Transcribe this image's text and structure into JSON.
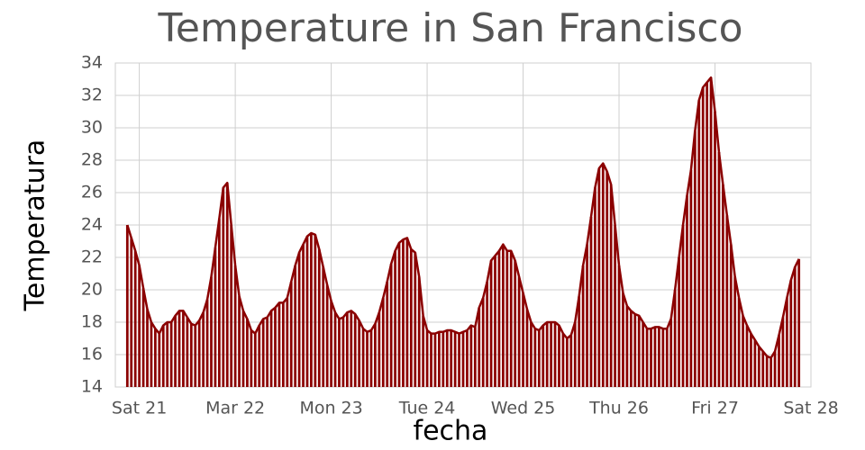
{
  "chart_data": {
    "type": "bar",
    "title": "Temperature in San Francisco",
    "x_label": "fecha",
    "y_label": "Temperatura",
    "color": "#8b0000",
    "line": true,
    "grid": true,
    "x": [
      "03-20 21:00",
      "03-20 22:00",
      "03-20 23:00",
      "03-21 00:00",
      "03-21 01:00",
      "03-21 02:00",
      "03-21 03:00",
      "03-21 04:00",
      "03-21 05:00",
      "03-21 06:00",
      "03-21 07:00",
      "03-21 08:00",
      "03-21 09:00",
      "03-21 10:00",
      "03-21 11:00",
      "03-21 12:00",
      "03-21 13:00",
      "03-21 14:00",
      "03-21 15:00",
      "03-21 16:00",
      "03-21 17:00",
      "03-21 18:00",
      "03-21 19:00",
      "03-21 20:00",
      "03-21 21:00",
      "03-21 22:00",
      "03-21 23:00",
      "03-22 00:00",
      "03-22 01:00",
      "03-22 02:00",
      "03-22 03:00",
      "03-22 04:00",
      "03-22 05:00",
      "03-22 06:00",
      "03-22 07:00",
      "03-22 08:00",
      "03-22 09:00",
      "03-22 10:00",
      "03-22 11:00",
      "03-22 12:00",
      "03-22 13:00",
      "03-22 14:00",
      "03-22 15:00",
      "03-22 16:00",
      "03-22 17:00",
      "03-22 18:00",
      "03-22 19:00",
      "03-22 20:00",
      "03-22 21:00",
      "03-22 22:00",
      "03-22 23:00",
      "03-23 00:00",
      "03-23 01:00",
      "03-23 02:00",
      "03-23 03:00",
      "03-23 04:00",
      "03-23 05:00",
      "03-23 06:00",
      "03-23 07:00",
      "03-23 08:00",
      "03-23 09:00",
      "03-23 10:00",
      "03-23 11:00",
      "03-23 12:00",
      "03-23 13:00",
      "03-23 14:00",
      "03-23 15:00",
      "03-23 16:00",
      "03-23 17:00",
      "03-23 18:00",
      "03-23 19:00",
      "03-23 20:00",
      "03-23 21:00",
      "03-23 22:00",
      "03-23 23:00",
      "03-24 00:00",
      "03-24 01:00",
      "03-24 02:00",
      "03-24 03:00",
      "03-24 04:00",
      "03-24 05:00",
      "03-24 06:00",
      "03-24 07:00",
      "03-24 08:00",
      "03-24 09:00",
      "03-24 10:00",
      "03-24 11:00",
      "03-24 12:00",
      "03-24 13:00",
      "03-24 14:00",
      "03-24 15:00",
      "03-24 16:00",
      "03-24 17:00",
      "03-24 18:00",
      "03-24 19:00",
      "03-24 20:00",
      "03-24 21:00",
      "03-24 22:00",
      "03-24 23:00",
      "03-25 00:00",
      "03-25 01:00",
      "03-25 02:00",
      "03-25 03:00",
      "03-25 04:00",
      "03-25 05:00",
      "03-25 06:00",
      "03-25 07:00",
      "03-25 08:00",
      "03-25 09:00",
      "03-25 10:00",
      "03-25 11:00",
      "03-25 12:00",
      "03-25 13:00",
      "03-25 14:00",
      "03-25 15:00",
      "03-25 16:00",
      "03-25 17:00",
      "03-25 18:00",
      "03-25 19:00",
      "03-25 20:00",
      "03-25 21:00",
      "03-25 22:00",
      "03-25 23:00",
      "03-26 00:00",
      "03-26 01:00",
      "03-26 02:00",
      "03-26 03:00",
      "03-26 04:00",
      "03-26 05:00",
      "03-26 06:00",
      "03-26 07:00",
      "03-26 08:00",
      "03-26 09:00",
      "03-26 10:00",
      "03-26 11:00",
      "03-26 12:00",
      "03-26 13:00",
      "03-26 14:00",
      "03-26 15:00",
      "03-26 16:00",
      "03-26 17:00",
      "03-26 18:00",
      "03-26 19:00",
      "03-26 20:00",
      "03-26 21:00",
      "03-26 22:00",
      "03-26 23:00",
      "03-27 00:00",
      "03-27 01:00",
      "03-27 02:00",
      "03-27 03:00",
      "03-27 04:00",
      "03-27 05:00",
      "03-27 06:00",
      "03-27 07:00",
      "03-27 08:00",
      "03-27 09:00",
      "03-27 10:00",
      "03-27 11:00",
      "03-27 12:00",
      "03-27 13:00",
      "03-27 14:00",
      "03-27 15:00",
      "03-27 16:00",
      "03-27 17:00",
      "03-27 18:00",
      "03-27 19:00",
      "03-27 20:00",
      "03-27 21:00"
    ],
    "values": [
      24.0,
      23.2,
      22.4,
      21.5,
      20.1,
      18.8,
      18.0,
      17.6,
      17.3,
      17.8,
      18.0,
      18.0,
      18.4,
      18.7,
      18.7,
      18.3,
      17.9,
      17.8,
      18.1,
      18.6,
      19.4,
      20.8,
      22.6,
      24.4,
      26.3,
      26.6,
      24.0,
      21.5,
      19.6,
      18.7,
      18.2,
      17.5,
      17.3,
      17.8,
      18.2,
      18.3,
      18.7,
      18.9,
      19.2,
      19.2,
      19.5,
      20.5,
      21.5,
      22.3,
      22.8,
      23.3,
      23.5,
      23.4,
      22.5,
      21.4,
      20.3,
      19.3,
      18.6,
      18.2,
      18.3,
      18.6,
      18.7,
      18.5,
      18.1,
      17.6,
      17.4,
      17.5,
      17.9,
      18.6,
      19.5,
      20.5,
      21.6,
      22.4,
      22.9,
      23.1,
      23.2,
      22.5,
      22.3,
      20.8,
      18.4,
      17.5,
      17.3,
      17.3,
      17.4,
      17.4,
      17.5,
      17.5,
      17.4,
      17.3,
      17.4,
      17.5,
      17.8,
      17.7,
      18.9,
      19.5,
      20.5,
      21.8,
      22.1,
      22.4,
      22.8,
      22.4,
      22.4,
      21.8,
      20.8,
      19.8,
      18.8,
      18.0,
      17.6,
      17.5,
      17.8,
      18.0,
      18.0,
      18.0,
      17.8,
      17.3,
      17.0,
      17.2,
      18.0,
      19.6,
      21.5,
      22.8,
      24.5,
      26.3,
      27.5,
      27.8,
      27.3,
      26.5,
      24.0,
      21.5,
      19.8,
      19.0,
      18.7,
      18.5,
      18.4,
      18.0,
      17.6,
      17.6,
      17.7,
      17.7,
      17.6,
      17.6,
      18.2,
      20.0,
      22.0,
      24.0,
      25.8,
      27.4,
      29.8,
      31.7,
      32.5,
      32.8,
      33.1,
      31.0,
      28.5,
      26.5,
      24.6,
      22.8,
      20.8,
      19.5,
      18.4,
      17.8,
      17.3,
      16.9,
      16.5,
      16.2,
      15.9,
      15.8,
      16.2,
      17.2,
      18.3,
      19.5,
      20.6,
      21.4,
      21.9
    ],
    "xlim": [
      "03-20 18:00",
      "03-28 00:00"
    ],
    "xticks": [
      {
        "value": "03-21 00:00",
        "label": "Sat 21"
      },
      {
        "value": "03-22 00:00",
        "label": "Mar 22"
      },
      {
        "value": "03-23 00:00",
        "label": "Mon 23"
      },
      {
        "value": "03-24 00:00",
        "label": "Tue 24"
      },
      {
        "value": "03-25 00:00",
        "label": "Wed 25"
      },
      {
        "value": "03-26 00:00",
        "label": "Thu 26"
      },
      {
        "value": "03-27 00:00",
        "label": "Fri 27"
      },
      {
        "value": "03-28 00:00",
        "label": "Sat 28"
      }
    ],
    "ylim": [
      14,
      34
    ],
    "yticks": [
      14,
      16,
      18,
      20,
      22,
      24,
      26,
      28,
      30,
      32,
      34
    ]
  }
}
